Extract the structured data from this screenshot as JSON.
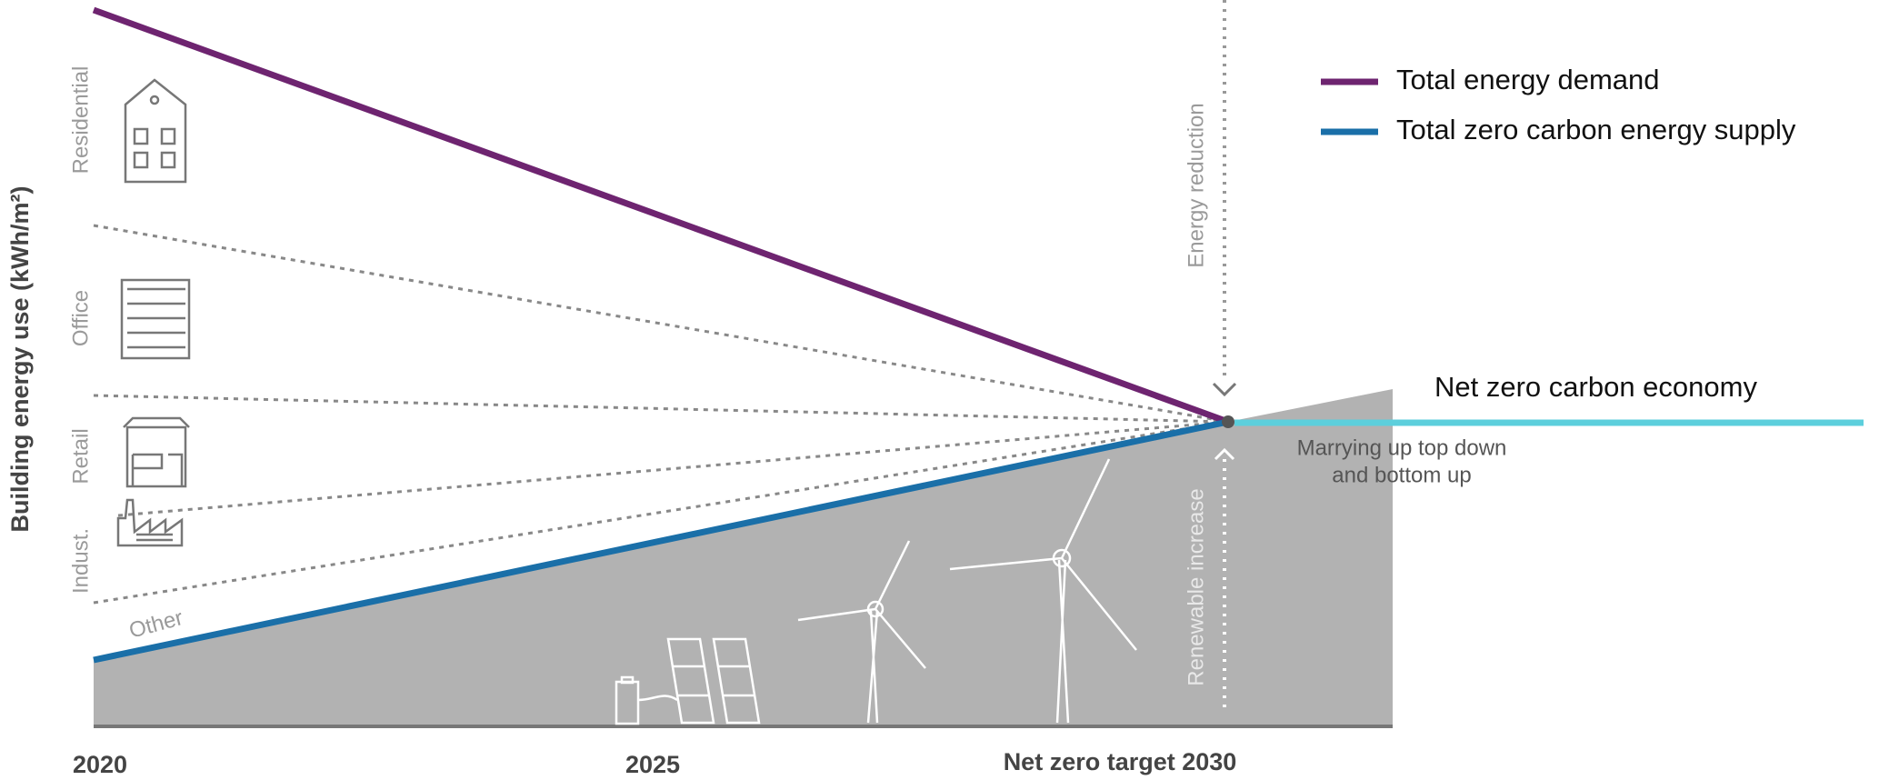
{
  "y_axis_title": "Building energy use (kWh/m²)",
  "x_labels": [
    "2020",
    "2025",
    "Net zero target 2030"
  ],
  "sector_labels": [
    "Residential",
    "Office",
    "Retail",
    "Indust.",
    "Other"
  ],
  "legend": [
    {
      "label": "Total energy demand",
      "color": "#6e2470"
    },
    {
      "label": "Total zero carbon energy supply",
      "color": "#1a6fa8"
    }
  ],
  "annotations": {
    "net_zero": "Net zero carbon economy",
    "marrying": [
      "Marrying up top down",
      "and bottom up"
    ],
    "energy_reduction": "Energy reduction",
    "renewable_increase": "Renewable increase"
  }
}
